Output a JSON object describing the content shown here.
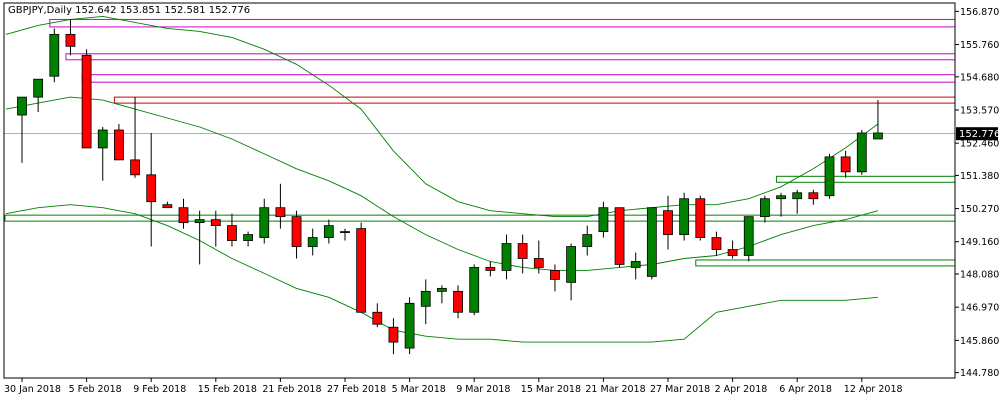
{
  "chart_window": {
    "header_text": "GBPJPY,Daily  152.642 153.851 152.581 152.776"
  },
  "colors": {
    "background": "#ffffff",
    "frame": "#000000",
    "bull_candle": "#008000",
    "bear_candle": "#ff0000",
    "wick": "#000000",
    "bollinger": "#008000",
    "magenta_zone": "#cc00cc",
    "red_zone": "#cc0000",
    "green_zone": "#008000",
    "current_price_bg": "#000000"
  },
  "chart_data": {
    "type": "candlestick",
    "symbol": "GBPJPY",
    "timeframe": "Daily",
    "header": {
      "open": 152.642,
      "high": 153.851,
      "low": 152.581,
      "close": 152.776
    },
    "current_price": 152.776,
    "ylim": [
      144.6,
      157.15
    ],
    "y_ticks": [
      "156.870",
      "155.760",
      "154.680",
      "153.570",
      "152.460",
      "151.380",
      "150.270",
      "149.160",
      "148.080",
      "146.970",
      "145.860",
      "144.780"
    ],
    "x_tick_labels": [
      "30 Jan 2018",
      "5 Feb 2018",
      "9 Feb 2018",
      "15 Feb 2018",
      "21 Feb 2018",
      "27 Feb 2018",
      "5 Mar 2018",
      "9 Mar 2018",
      "15 Mar 2018",
      "21 Mar 2018",
      "27 Mar 2018",
      "2 Apr 2018",
      "6 Apr 2018",
      "12 Apr 2018"
    ],
    "x_tick_indices": [
      0,
      4,
      8,
      12,
      16,
      20,
      24,
      28,
      32,
      36,
      40,
      44,
      48,
      52
    ],
    "candles": [
      {
        "o": 153.4,
        "h": 154.0,
        "l": 151.8,
        "c": 154.0
      },
      {
        "o": 154.0,
        "h": 154.6,
        "l": 153.5,
        "c": 154.6
      },
      {
        "o": 154.7,
        "h": 156.3,
        "l": 154.5,
        "c": 156.1
      },
      {
        "o": 156.1,
        "h": 156.6,
        "l": 155.4,
        "c": 155.7
      },
      {
        "o": 155.4,
        "h": 155.6,
        "l": 152.3,
        "c": 152.3
      },
      {
        "o": 152.3,
        "h": 153.0,
        "l": 151.2,
        "c": 152.9
      },
      {
        "o": 152.9,
        "h": 153.1,
        "l": 151.9,
        "c": 151.9
      },
      {
        "o": 151.9,
        "h": 154.0,
        "l": 151.3,
        "c": 151.4
      },
      {
        "o": 151.4,
        "h": 152.8,
        "l": 149.0,
        "c": 150.5
      },
      {
        "o": 150.4,
        "h": 150.5,
        "l": 150.3,
        "c": 150.3
      },
      {
        "o": 150.3,
        "h": 150.6,
        "l": 149.6,
        "c": 149.8
      },
      {
        "o": 149.8,
        "h": 150.2,
        "l": 148.4,
        "c": 149.9
      },
      {
        "o": 149.9,
        "h": 150.2,
        "l": 149.0,
        "c": 149.7
      },
      {
        "o": 149.7,
        "h": 150.1,
        "l": 149.0,
        "c": 149.2
      },
      {
        "o": 149.2,
        "h": 149.5,
        "l": 149.0,
        "c": 149.4
      },
      {
        "o": 149.3,
        "h": 150.6,
        "l": 149.1,
        "c": 150.3
      },
      {
        "o": 150.3,
        "h": 151.1,
        "l": 149.6,
        "c": 150.0
      },
      {
        "o": 150.0,
        "h": 150.2,
        "l": 148.6,
        "c": 149.0
      },
      {
        "o": 149.0,
        "h": 149.6,
        "l": 148.7,
        "c": 149.3
      },
      {
        "o": 149.3,
        "h": 149.9,
        "l": 149.1,
        "c": 149.7
      },
      {
        "o": 149.5,
        "h": 149.6,
        "l": 149.2,
        "c": 149.5
      },
      {
        "o": 149.6,
        "h": 149.8,
        "l": 146.8,
        "c": 146.8
      },
      {
        "o": 146.8,
        "h": 147.1,
        "l": 146.3,
        "c": 146.4
      },
      {
        "o": 146.3,
        "h": 146.6,
        "l": 145.4,
        "c": 145.8
      },
      {
        "o": 145.6,
        "h": 147.3,
        "l": 145.4,
        "c": 147.1
      },
      {
        "o": 147.0,
        "h": 147.9,
        "l": 146.4,
        "c": 147.5
      },
      {
        "o": 147.5,
        "h": 147.7,
        "l": 147.1,
        "c": 147.6
      },
      {
        "o": 147.5,
        "h": 147.7,
        "l": 146.6,
        "c": 146.8
      },
      {
        "o": 146.8,
        "h": 148.4,
        "l": 146.7,
        "c": 148.3
      },
      {
        "o": 148.3,
        "h": 148.5,
        "l": 148.0,
        "c": 148.2
      },
      {
        "o": 148.2,
        "h": 149.4,
        "l": 147.9,
        "c": 149.1
      },
      {
        "o": 149.1,
        "h": 149.4,
        "l": 148.1,
        "c": 148.6
      },
      {
        "o": 148.6,
        "h": 149.2,
        "l": 148.1,
        "c": 148.3
      },
      {
        "o": 148.2,
        "h": 148.4,
        "l": 147.5,
        "c": 147.9
      },
      {
        "o": 147.8,
        "h": 149.1,
        "l": 147.2,
        "c": 149.0
      },
      {
        "o": 149.0,
        "h": 149.7,
        "l": 148.7,
        "c": 149.4
      },
      {
        "o": 149.5,
        "h": 150.5,
        "l": 149.3,
        "c": 150.3
      },
      {
        "o": 150.3,
        "h": 150.3,
        "l": 148.3,
        "c": 148.4
      },
      {
        "o": 148.3,
        "h": 148.8,
        "l": 147.9,
        "c": 148.5
      },
      {
        "o": 148.0,
        "h": 150.3,
        "l": 147.9,
        "c": 150.3
      },
      {
        "o": 150.2,
        "h": 150.7,
        "l": 148.9,
        "c": 149.4
      },
      {
        "o": 149.4,
        "h": 150.8,
        "l": 149.2,
        "c": 150.6
      },
      {
        "o": 150.6,
        "h": 150.7,
        "l": 149.2,
        "c": 149.3
      },
      {
        "o": 149.3,
        "h": 149.5,
        "l": 148.7,
        "c": 148.9
      },
      {
        "o": 148.9,
        "h": 149.2,
        "l": 148.6,
        "c": 148.7
      },
      {
        "o": 148.7,
        "h": 150.0,
        "l": 148.5,
        "c": 150.0
      },
      {
        "o": 150.0,
        "h": 150.7,
        "l": 149.8,
        "c": 150.6
      },
      {
        "o": 150.6,
        "h": 150.8,
        "l": 150.0,
        "c": 150.7
      },
      {
        "o": 150.6,
        "h": 150.9,
        "l": 150.1,
        "c": 150.8
      },
      {
        "o": 150.8,
        "h": 150.9,
        "l": 150.4,
        "c": 150.6
      },
      {
        "o": 150.7,
        "h": 152.1,
        "l": 150.6,
        "c": 152.0
      },
      {
        "o": 152.0,
        "h": 152.2,
        "l": 151.3,
        "c": 151.5
      },
      {
        "o": 151.5,
        "h": 152.9,
        "l": 151.4,
        "c": 152.8
      },
      {
        "o": 152.6,
        "h": 153.9,
        "l": 152.6,
        "c": 152.8
      }
    ],
    "bollinger_bands": {
      "upper": [
        {
          "i": -1,
          "v": 156.1
        },
        {
          "i": 1,
          "v": 156.4
        },
        {
          "i": 3,
          "v": 156.6
        },
        {
          "i": 5,
          "v": 156.7
        },
        {
          "i": 7,
          "v": 156.5
        },
        {
          "i": 9,
          "v": 156.3
        },
        {
          "i": 11,
          "v": 156.2
        },
        {
          "i": 13,
          "v": 156.0
        },
        {
          "i": 15,
          "v": 155.6
        },
        {
          "i": 17,
          "v": 155.1
        },
        {
          "i": 19,
          "v": 154.4
        },
        {
          "i": 21,
          "v": 153.6
        },
        {
          "i": 23,
          "v": 152.2
        },
        {
          "i": 25,
          "v": 151.1
        },
        {
          "i": 27,
          "v": 150.5
        },
        {
          "i": 29,
          "v": 150.2
        },
        {
          "i": 31,
          "v": 150.1
        },
        {
          "i": 33,
          "v": 150.0
        },
        {
          "i": 35,
          "v": 150.0
        },
        {
          "i": 37,
          "v": 150.2
        },
        {
          "i": 39,
          "v": 150.3
        },
        {
          "i": 41,
          "v": 150.4
        },
        {
          "i": 43,
          "v": 150.4
        },
        {
          "i": 45,
          "v": 150.6
        },
        {
          "i": 47,
          "v": 151.0
        },
        {
          "i": 49,
          "v": 151.6
        },
        {
          "i": 51,
          "v": 152.3
        },
        {
          "i": 53,
          "v": 153.1
        }
      ],
      "middle": [
        {
          "i": -1,
          "v": 153.6
        },
        {
          "i": 1,
          "v": 153.8
        },
        {
          "i": 3,
          "v": 154.0
        },
        {
          "i": 5,
          "v": 153.9
        },
        {
          "i": 7,
          "v": 153.6
        },
        {
          "i": 9,
          "v": 153.3
        },
        {
          "i": 11,
          "v": 153.0
        },
        {
          "i": 13,
          "v": 152.6
        },
        {
          "i": 15,
          "v": 152.1
        },
        {
          "i": 17,
          "v": 151.6
        },
        {
          "i": 19,
          "v": 151.2
        },
        {
          "i": 21,
          "v": 150.7
        },
        {
          "i": 23,
          "v": 150.0
        },
        {
          "i": 25,
          "v": 149.4
        },
        {
          "i": 27,
          "v": 148.9
        },
        {
          "i": 29,
          "v": 148.5
        },
        {
          "i": 31,
          "v": 148.3
        },
        {
          "i": 33,
          "v": 148.2
        },
        {
          "i": 35,
          "v": 148.2
        },
        {
          "i": 37,
          "v": 148.3
        },
        {
          "i": 39,
          "v": 148.4
        },
        {
          "i": 41,
          "v": 148.6
        },
        {
          "i": 43,
          "v": 148.7
        },
        {
          "i": 45,
          "v": 149.0
        },
        {
          "i": 47,
          "v": 149.4
        },
        {
          "i": 49,
          "v": 149.7
        },
        {
          "i": 51,
          "v": 149.9
        },
        {
          "i": 53,
          "v": 150.2
        }
      ],
      "lower": [
        {
          "i": -1,
          "v": 150.1
        },
        {
          "i": 1,
          "v": 150.3
        },
        {
          "i": 3,
          "v": 150.4
        },
        {
          "i": 5,
          "v": 150.3
        },
        {
          "i": 7,
          "v": 150.1
        },
        {
          "i": 9,
          "v": 149.7
        },
        {
          "i": 11,
          "v": 149.2
        },
        {
          "i": 13,
          "v": 148.6
        },
        {
          "i": 15,
          "v": 148.1
        },
        {
          "i": 17,
          "v": 147.6
        },
        {
          "i": 19,
          "v": 147.3
        },
        {
          "i": 21,
          "v": 146.8
        },
        {
          "i": 23,
          "v": 146.2
        },
        {
          "i": 25,
          "v": 146.0
        },
        {
          "i": 27,
          "v": 145.9
        },
        {
          "i": 29,
          "v": 145.9
        },
        {
          "i": 31,
          "v": 145.8
        },
        {
          "i": 33,
          "v": 145.8
        },
        {
          "i": 35,
          "v": 145.8
        },
        {
          "i": 37,
          "v": 145.8
        },
        {
          "i": 39,
          "v": 145.8
        },
        {
          "i": 41,
          "v": 145.9
        },
        {
          "i": 43,
          "v": 146.8
        },
        {
          "i": 45,
          "v": 147.0
        },
        {
          "i": 47,
          "v": 147.2
        },
        {
          "i": 49,
          "v": 147.2
        },
        {
          "i": 51,
          "v": 147.2
        },
        {
          "i": 53,
          "v": 147.3
        }
      ]
    },
    "zones": [
      {
        "name": "supply-zone-1",
        "color": "magenta",
        "from": 2,
        "y1": 156.6,
        "y2": 156.35
      },
      {
        "name": "supply-zone-2",
        "color": "magenta",
        "from": 3,
        "y1": 155.45,
        "y2": 155.25
      },
      {
        "name": "supply-zone-3",
        "color": "magenta",
        "from": 4,
        "y1": 154.75,
        "y2": 154.5
      },
      {
        "name": "resistance-zone",
        "color": "red",
        "from": 6,
        "y1": 154.0,
        "y2": 153.8
      },
      {
        "name": "support-zone-1",
        "color": "green",
        "from": 47,
        "y1": 151.35,
        "y2": 151.15
      },
      {
        "name": "support-zone-2",
        "color": "green",
        "from": -1,
        "y1": 150.05,
        "y2": 149.85
      },
      {
        "name": "support-zone-3",
        "color": "green",
        "from": 42,
        "y1": 148.55,
        "y2": 148.35
      }
    ]
  }
}
